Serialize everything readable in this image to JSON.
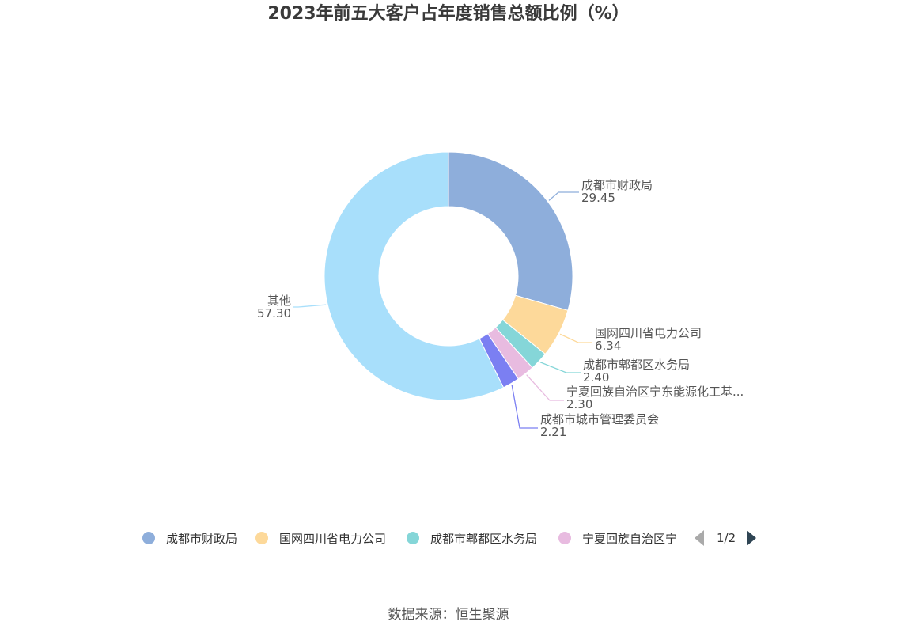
{
  "chart_data": {
    "type": "pie",
    "title": "2023年前五大客户占年度销售总额比例（%）",
    "slices": [
      {
        "name": "成都市财政局",
        "value_label": "29.45",
        "value": 29.45,
        "color": "#8eaedb"
      },
      {
        "name": "国网四川省电力公司",
        "value_label": "6.34",
        "value": 6.34,
        "color": "#fdd99a"
      },
      {
        "name": "成都市郫都区水务局",
        "value_label": "2.40",
        "value": 2.4,
        "color": "#85d6d8"
      },
      {
        "name": "宁夏回族自治区宁东能源化工基...",
        "value_label": "2.30",
        "value": 2.3,
        "color": "#e8bbe0"
      },
      {
        "name": "成都市城市管理委员会",
        "value_label": "2.21",
        "value": 2.21,
        "color": "#7b7ff2"
      },
      {
        "name": "其他",
        "value_label": "57.30",
        "value": 57.3,
        "color": "#a8dffb"
      }
    ],
    "legend": {
      "items": [
        "成都市财政局",
        "国网四川省电力公司",
        "成都市郫都区水务局",
        "宁夏回族自治区宁"
      ],
      "page": "1/2"
    }
  },
  "source": "数据来源：恒生聚源"
}
